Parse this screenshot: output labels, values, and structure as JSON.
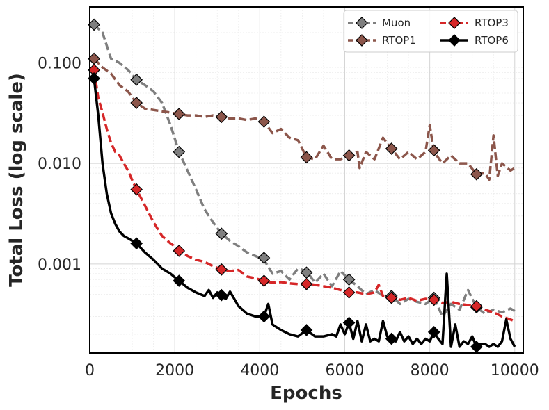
{
  "chart_data": {
    "type": "line",
    "title": "",
    "xlabel": "Epochs",
    "ylabel": "Total Loss (log scale)",
    "xlim": [
      0,
      10200
    ],
    "ylim": [
      0.00013,
      0.36
    ],
    "yscale": "log",
    "grid": true,
    "legend_position": "top-right",
    "x_ticks": [
      0,
      2000,
      4000,
      6000,
      8000,
      10000
    ],
    "x_tick_labels": [
      "0",
      "2000",
      "4000",
      "6000",
      "8000",
      "10000"
    ],
    "y_ticks": [
      0.001,
      0.01,
      0.1
    ],
    "y_tick_labels": [
      "0.001",
      "0.010",
      "0.100"
    ],
    "series": [
      {
        "name": "Muon",
        "color": "#7f7f7f",
        "dash": "dashed",
        "marker_fill": "#7f7f7f",
        "x": [
          100,
          300,
          500,
          700,
          900,
          1100,
          1300,
          1500,
          1700,
          1900,
          2100,
          2300,
          2500,
          2700,
          2900,
          3100,
          3300,
          3500,
          3700,
          3900,
          4100,
          4300,
          4500,
          4700,
          4900,
          5100,
          5300,
          5500,
          5700,
          5900,
          6100,
          6300,
          6500,
          6700,
          6900,
          7100,
          7300,
          7500,
          7700,
          7900,
          8100,
          8300,
          8500,
          8700,
          8900,
          9100,
          9300,
          9500,
          9700,
          9900,
          10000
        ],
        "values": [
          0.24,
          0.2,
          0.11,
          0.1,
          0.085,
          0.068,
          0.06,
          0.052,
          0.04,
          0.024,
          0.013,
          0.0085,
          0.0055,
          0.0035,
          0.0026,
          0.002,
          0.0017,
          0.0015,
          0.0013,
          0.0012,
          0.0011,
          0.0008,
          0.00085,
          0.0007,
          0.0009,
          0.00085,
          0.00065,
          0.0008,
          0.0006,
          0.00085,
          0.0007,
          0.0006,
          0.0005,
          0.00055,
          0.00048,
          0.00048,
          0.0004,
          0.00045,
          0.00042,
          0.0004,
          0.00046,
          0.0003,
          0.0004,
          0.00035,
          0.00055,
          0.00037,
          0.00032,
          0.00035,
          0.00033,
          0.00036,
          0.00034
        ],
        "marker_x": [
          100,
          1100,
          2100,
          3100,
          4100,
          5100,
          6100,
          7100,
          8100,
          9100
        ],
        "marker_values": [
          0.24,
          0.068,
          0.013,
          0.002,
          0.00115,
          0.00082,
          0.0007,
          0.00048,
          0.00046,
          0.00037
        ]
      },
      {
        "name": "RTOP1",
        "color": "#8c564b",
        "dash": "dashed",
        "marker_fill": "#8c564b",
        "x": [
          100,
          300,
          500,
          700,
          900,
          1100,
          1300,
          1500,
          1700,
          1900,
          2100,
          2300,
          2500,
          2700,
          2900,
          3100,
          3300,
          3500,
          3700,
          3900,
          4100,
          4300,
          4500,
          4700,
          4900,
          5100,
          5300,
          5500,
          5700,
          5900,
          6100,
          6300,
          6350,
          6500,
          6700,
          6900,
          7100,
          7300,
          7500,
          7700,
          7900,
          8000,
          8100,
          8300,
          8500,
          8700,
          8900,
          9100,
          9300,
          9400,
          9500,
          9600,
          9700,
          9900,
          10000
        ],
        "values": [
          0.11,
          0.09,
          0.078,
          0.06,
          0.052,
          0.04,
          0.035,
          0.034,
          0.033,
          0.032,
          0.031,
          0.03,
          0.03,
          0.029,
          0.03,
          0.029,
          0.028,
          0.028,
          0.027,
          0.028,
          0.026,
          0.02,
          0.022,
          0.018,
          0.017,
          0.0115,
          0.011,
          0.015,
          0.011,
          0.011,
          0.012,
          0.013,
          0.009,
          0.013,
          0.011,
          0.018,
          0.014,
          0.011,
          0.013,
          0.011,
          0.013,
          0.024,
          0.013,
          0.01,
          0.012,
          0.01,
          0.01,
          0.0078,
          0.008,
          0.0069,
          0.019,
          0.0075,
          0.01,
          0.0085,
          0.009
        ],
        "marker_x": [
          100,
          1100,
          2100,
          3100,
          4100,
          5100,
          6100,
          7100,
          8100,
          9100
        ],
        "marker_values": [
          0.11,
          0.04,
          0.031,
          0.029,
          0.026,
          0.0115,
          0.012,
          0.014,
          0.0135,
          0.0078
        ]
      },
      {
        "name": "RTOP3",
        "color": "#d62728",
        "dash": "dashed",
        "marker_fill": "#d62728",
        "x": [
          100,
          200,
          300,
          400,
          500,
          600,
          700,
          800,
          900,
          1000,
          1100,
          1300,
          1500,
          1700,
          1900,
          2100,
          2300,
          2500,
          2700,
          2900,
          3100,
          3300,
          3500,
          3700,
          3900,
          4100,
          4300,
          4500,
          4700,
          4900,
          5100,
          5300,
          5500,
          5700,
          5900,
          6100,
          6300,
          6500,
          6700,
          6800,
          6900,
          7100,
          7300,
          7500,
          7700,
          7900,
          8100,
          8300,
          8500,
          8700,
          8900,
          9100,
          9300,
          9500,
          9700,
          9900,
          10000
        ],
        "values": [
          0.085,
          0.045,
          0.032,
          0.022,
          0.016,
          0.013,
          0.012,
          0.01,
          0.0085,
          0.0068,
          0.0055,
          0.0038,
          0.0026,
          0.0019,
          0.0016,
          0.0014,
          0.0012,
          0.0011,
          0.00105,
          0.00095,
          0.00088,
          0.00085,
          0.00087,
          0.00075,
          0.00072,
          0.00068,
          0.00065,
          0.00066,
          0.00064,
          0.00063,
          0.00064,
          0.00062,
          0.0006,
          0.00058,
          0.00055,
          0.00053,
          0.00052,
          0.0005,
          0.00052,
          0.00062,
          0.00048,
          0.00047,
          0.00044,
          0.00046,
          0.00043,
          0.00045,
          0.00044,
          0.00041,
          0.00042,
          0.0004,
          0.00039,
          0.00038,
          0.00035,
          0.00033,
          0.0003,
          0.00028,
          0.00027
        ],
        "marker_x": [
          100,
          1100,
          2100,
          3100,
          4100,
          5100,
          6100,
          7100,
          8100,
          9100
        ],
        "marker_values": [
          0.085,
          0.0055,
          0.00135,
          0.00088,
          0.00068,
          0.00063,
          0.00052,
          0.00046,
          0.00044,
          0.00038
        ]
      },
      {
        "name": "RTOP6",
        "color": "#000000",
        "dash": "solid",
        "marker_fill": "#000000",
        "x": [
          100,
          200,
          300,
          400,
          500,
          600,
          700,
          800,
          900,
          1000,
          1100,
          1300,
          1500,
          1700,
          1900,
          2100,
          2300,
          2500,
          2700,
          2800,
          2900,
          3000,
          3100,
          3200,
          3300,
          3400,
          3500,
          3700,
          3900,
          4100,
          4200,
          4300,
          4500,
          4700,
          4900,
          5100,
          5300,
          5500,
          5700,
          5800,
          5900,
          6000,
          6100,
          6200,
          6300,
          6400,
          6500,
          6600,
          6700,
          6800,
          6900,
          7000,
          7100,
          7200,
          7300,
          7400,
          7500,
          7600,
          7700,
          7800,
          7900,
          8000,
          8100,
          8200,
          8300,
          8400,
          8500,
          8600,
          8700,
          8800,
          8900,
          9000,
          9100,
          9200,
          9300,
          9400,
          9500,
          9600,
          9700,
          9800,
          9900,
          10000
        ],
        "values": [
          0.07,
          0.03,
          0.01,
          0.005,
          0.0032,
          0.0025,
          0.0021,
          0.0019,
          0.0018,
          0.0017,
          0.0016,
          0.0013,
          0.0011,
          0.0009,
          0.0008,
          0.00068,
          0.00058,
          0.00052,
          0.00048,
          0.00055,
          0.00046,
          0.00052,
          0.00048,
          0.00045,
          0.00053,
          0.00045,
          0.00038,
          0.00032,
          0.0003,
          0.0003,
          0.0004,
          0.00025,
          0.00022,
          0.0002,
          0.00019,
          0.00022,
          0.00019,
          0.00019,
          0.0002,
          0.00019,
          0.00025,
          0.0002,
          0.00026,
          0.00018,
          0.00027,
          0.00017,
          0.00025,
          0.00017,
          0.00018,
          0.00017,
          0.00027,
          0.00019,
          0.00018,
          0.00017,
          0.00021,
          0.00017,
          0.00019,
          0.00016,
          0.00018,
          0.00016,
          0.00018,
          0.00017,
          0.00021,
          0.00018,
          0.00016,
          0.0008,
          0.00015,
          0.00025,
          0.00015,
          0.00017,
          0.00016,
          0.00019,
          0.00015,
          0.00016,
          0.00016,
          0.00015,
          0.00016,
          0.00015,
          0.00017,
          0.00028,
          0.00018,
          0.00015
        ],
        "marker_x": [
          100,
          1100,
          2100,
          3100,
          4100,
          5100,
          6100,
          7100,
          8100,
          9100
        ],
        "marker_values": [
          0.07,
          0.0016,
          0.00068,
          0.00049,
          0.0003,
          0.00022,
          0.00026,
          0.00018,
          0.00021,
          0.00015
        ]
      }
    ]
  }
}
